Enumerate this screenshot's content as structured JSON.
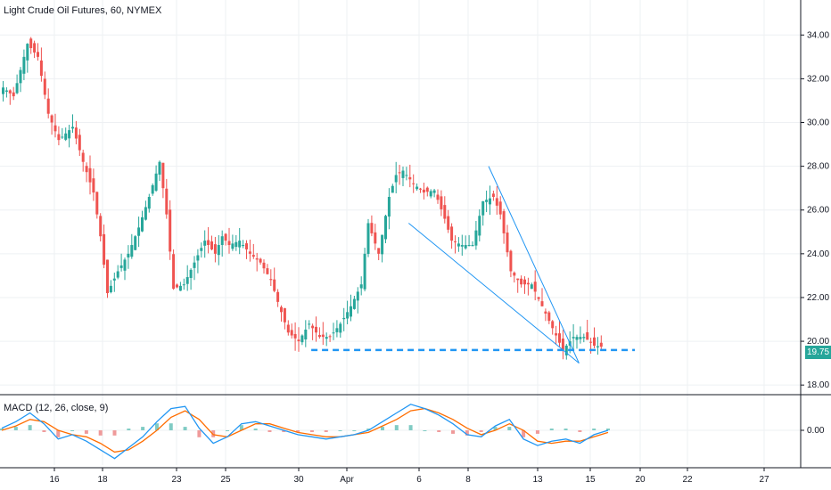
{
  "header": {
    "title": "Light Crude Oil Futures, 60, NYMEX"
  },
  "macd": {
    "label": "MACD (12, 26, close, 9)",
    "zero_label": "0.00"
  },
  "last_price": "19.75",
  "colors": {
    "up": "#26a69a",
    "down": "#ef5350",
    "macd_line": "#2196f3",
    "signal_line": "#ff6d00",
    "trendline": "#2196f3",
    "grid": "#eef0f3"
  },
  "chart_data": [
    {
      "type": "candlestick",
      "title": "Light Crude Oil Futures, 60, NYMEX",
      "y_ticks": [
        "34.00",
        "32.00",
        "30.00",
        "28.00",
        "26.00",
        "24.00",
        "22.00",
        "20.00",
        "18.00"
      ],
      "ylim": [
        17.6,
        35.6
      ],
      "x_ticks": [
        "16",
        "18",
        "23",
        "25",
        "30",
        "Apr",
        "6",
        "8",
        "13",
        "15",
        "20",
        "22",
        "27"
      ],
      "close_path": [
        [
          0,
          31.6
        ],
        [
          3,
          31.2
        ],
        [
          7,
          33.6
        ],
        [
          10,
          33.0
        ],
        [
          13,
          30.4
        ],
        [
          16,
          29.2
        ],
        [
          20,
          29.8
        ],
        [
          23,
          28.2
        ],
        [
          26,
          26.8
        ],
        [
          28,
          24.8
        ],
        [
          30,
          22.2
        ],
        [
          33,
          23.2
        ],
        [
          36,
          24.0
        ],
        [
          39,
          25.2
        ],
        [
          42,
          26.6
        ],
        [
          45,
          28.2
        ],
        [
          47,
          25.8
        ],
        [
          49,
          22.4
        ],
        [
          52,
          22.6
        ],
        [
          55,
          23.6
        ],
        [
          58,
          24.6
        ],
        [
          61,
          24.0
        ],
        [
          63,
          24.8
        ],
        [
          65,
          24.4
        ],
        [
          68,
          24.6
        ],
        [
          71,
          24.0
        ],
        [
          74,
          23.6
        ],
        [
          77,
          22.8
        ],
        [
          79,
          21.8
        ],
        [
          82,
          20.4
        ],
        [
          85,
          20.0
        ],
        [
          88,
          20.8
        ],
        [
          91,
          20.2
        ],
        [
          94,
          20.2
        ],
        [
          97,
          20.8
        ],
        [
          100,
          21.6
        ],
        [
          103,
          22.6
        ],
        [
          105,
          25.4
        ],
        [
          108,
          24.0
        ],
        [
          111,
          26.6
        ],
        [
          113,
          27.6
        ],
        [
          115,
          27.8
        ],
        [
          118,
          27.2
        ],
        [
          121,
          26.8
        ],
        [
          124,
          26.9
        ],
        [
          127,
          25.6
        ],
        [
          129,
          24.6
        ],
        [
          132,
          24.4
        ],
        [
          135,
          24.4
        ],
        [
          138,
          26.4
        ],
        [
          141,
          26.6
        ],
        [
          143,
          25.8
        ],
        [
          146,
          23.2
        ],
        [
          149,
          22.6
        ],
        [
          152,
          22.6
        ],
        [
          155,
          21.6
        ],
        [
          158,
          20.6
        ],
        [
          161,
          19.6
        ],
        [
          164,
          20.2
        ],
        [
          167,
          20.2
        ],
        [
          170,
          19.8
        ],
        [
          172,
          19.75
        ]
      ],
      "trendlines": [
        {
          "from": [
            117,
            25.4
          ],
          "to": [
            166,
            19.0
          ]
        },
        {
          "from": [
            140,
            28.0
          ],
          "to": [
            166,
            19.0
          ]
        }
      ],
      "support_level": 19.6,
      "last_price": 19.75
    },
    {
      "type": "line",
      "title": "MACD (12, 26, close, 9)",
      "y_ticks": [
        "0.00"
      ],
      "ylim": [
        -1.6,
        1.6
      ],
      "series": [
        {
          "values": [
            0.1,
            0.4,
            0.8,
            0.3,
            -0.4,
            -0.2,
            -0.5,
            -0.9,
            -1.3,
            -0.8,
            -0.3,
            0.4,
            1.0,
            1.1,
            0.1,
            -0.6,
            -0.3,
            0.3,
            0.4,
            0.2,
            0.0,
            -0.2,
            -0.3,
            -0.4,
            -0.3,
            -0.2,
            0.0,
            0.4,
            0.8,
            1.2,
            1.0,
            0.7,
            0.3,
            -0.2,
            -0.3,
            0.2,
            0.5,
            -0.4,
            -0.7,
            -0.5,
            -0.4,
            -0.6,
            -0.2,
            0.0
          ]
        },
        {
          "values": [
            0.0,
            0.2,
            0.5,
            0.4,
            0.0,
            -0.2,
            -0.3,
            -0.6,
            -1.0,
            -0.9,
            -0.5,
            0.0,
            0.6,
            0.9,
            0.5,
            -0.2,
            -0.3,
            0.0,
            0.3,
            0.3,
            0.1,
            -0.1,
            -0.2,
            -0.3,
            -0.3,
            -0.2,
            -0.1,
            0.2,
            0.5,
            0.9,
            1.0,
            0.8,
            0.5,
            0.1,
            -0.2,
            0.0,
            0.3,
            0.0,
            -0.5,
            -0.6,
            -0.5,
            -0.5,
            -0.3,
            -0.1
          ]
        }
      ]
    }
  ]
}
